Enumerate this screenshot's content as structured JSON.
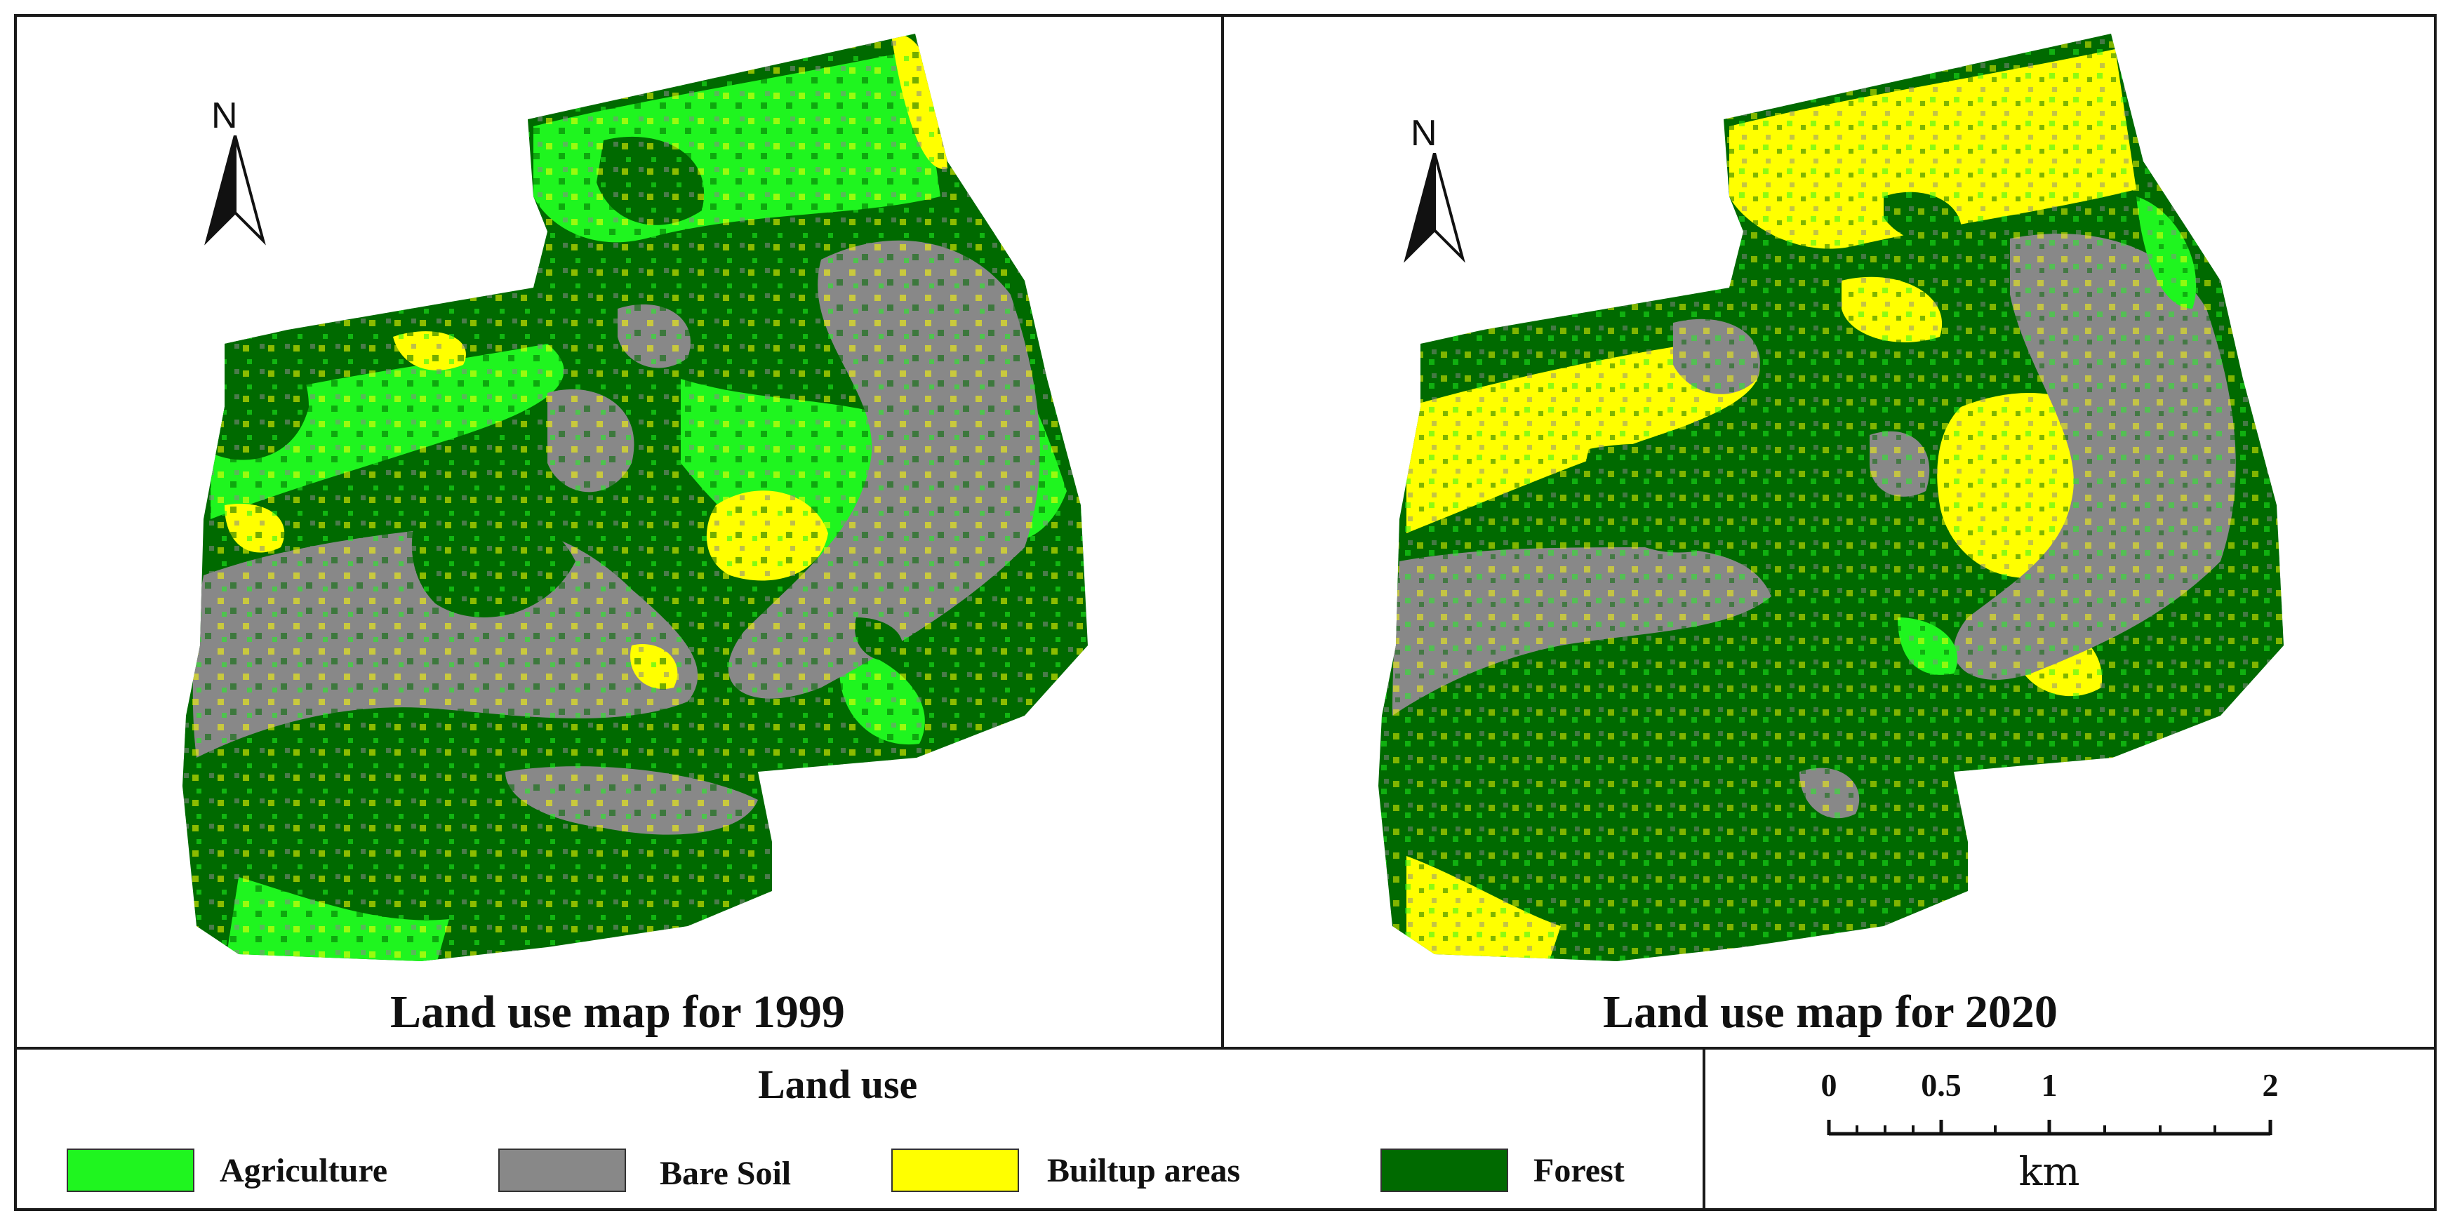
{
  "maps": [
    {
      "id": "1999",
      "title": "Land use map for 1999",
      "north_label": "N"
    },
    {
      "id": "2020",
      "title": "Land use map for 2020",
      "north_label": "N"
    }
  ],
  "legend": {
    "title": "Land use",
    "items": [
      {
        "label": "Agriculture",
        "color": "#1ff51f"
      },
      {
        "label": "Bare Soil",
        "color": "#888888"
      },
      {
        "label": "Builtup areas",
        "color": "#ffff00"
      },
      {
        "label": "Forest",
        "color": "#006a00"
      }
    ]
  },
  "scale_bar": {
    "ticks": [
      "0",
      "0.5",
      "1",
      "2"
    ],
    "unit": "km"
  }
}
